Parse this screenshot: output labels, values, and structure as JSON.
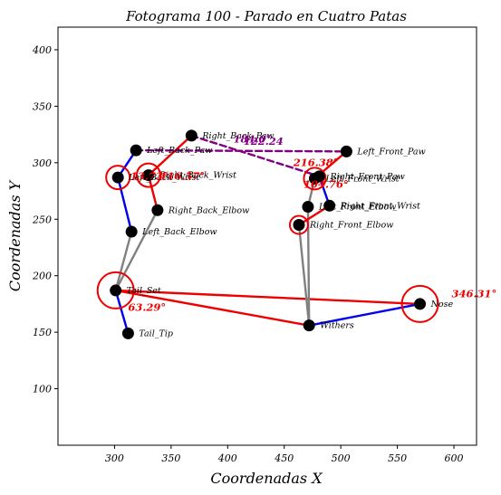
{
  "chart_data": {
    "type": "scatter",
    "title": "Fotograma 100 - Parado en Cuatro Patas",
    "xlabel": "Coordenadas X",
    "ylabel": "Coordenadas Y",
    "xlim": [
      250,
      620
    ],
    "ylim": [
      420,
      50
    ],
    "y_inverted": true,
    "xticks": [
      300,
      350,
      400,
      450,
      500,
      550,
      600
    ],
    "yticks": [
      100,
      150,
      200,
      250,
      300,
      350,
      400
    ],
    "grid": false,
    "keypoints": [
      {
        "name": "Tail_Tip",
        "x": 312,
        "y": 149
      },
      {
        "name": "Tail_Set",
        "x": 301,
        "y": 187
      },
      {
        "name": "Withers",
        "x": 472,
        "y": 156
      },
      {
        "name": "Nose",
        "x": 570,
        "y": 175
      },
      {
        "name": "Left_Back_Elbow",
        "x": 315,
        "y": 239
      },
      {
        "name": "Right_Back_Elbow",
        "x": 338,
        "y": 258
      },
      {
        "name": "Left_Back_Wrist",
        "x": 303,
        "y": 287
      },
      {
        "name": "Right_Back_Wrist",
        "x": 330,
        "y": 289
      },
      {
        "name": "Left_Back_Paw",
        "x": 319,
        "y": 311
      },
      {
        "name": "Right_Back_Paw",
        "x": 368,
        "y": 324
      },
      {
        "name": "Right_Front_Elbow",
        "x": 463,
        "y": 245
      },
      {
        "name": "Left_Front_Elbow",
        "x": 471,
        "y": 261
      },
      {
        "name": "Right_Front_Wrist",
        "x": 490,
        "y": 262
      },
      {
        "name": "Left_Front_Wrist",
        "x": 477,
        "y": 286
      },
      {
        "name": "Right_Front_Paw",
        "x": 481,
        "y": 288
      },
      {
        "name": "Left_Front_Paw",
        "x": 505,
        "y": 310
      }
    ],
    "point_labels": [
      {
        "point": "Tail_Tip",
        "text": "Tail_Tip"
      },
      {
        "point": "Tail_Set",
        "text": "Tail_Set"
      },
      {
        "point": "Withers",
        "text": "Withers"
      },
      {
        "point": "Nose",
        "text": "Nose"
      },
      {
        "point": "Left_Back_Elbow",
        "text": "Left_Back_Elbow"
      },
      {
        "point": "Right_Back_Elbow",
        "text": "Right_Back_Elbow"
      },
      {
        "point": "Left_Back_Wrist",
        "text": "Left_Back_Wrist"
      },
      {
        "point": "Right_Back_Wrist",
        "text": "Right_Back_Wrist"
      },
      {
        "point": "Left_Back_Paw",
        "text": "Left_Back_Paw"
      },
      {
        "point": "Right_Back_Paw",
        "text": "Right_Back_Paw"
      },
      {
        "point": "Right_Front_Elbow",
        "text": "Right_Front_Elbow"
      },
      {
        "point": "Left_Front_Elbow",
        "text": "Left_Front_Elbow"
      },
      {
        "point": "Right_Front_Wrist",
        "text": "Right_Front_Wrist"
      },
      {
        "point": "Left_Front_Wrist",
        "text": "Left_Front_Wrist"
      },
      {
        "point": "Right_Front_Paw",
        "text": "Right_Front_Paw"
      },
      {
        "point": "Left_Front_Paw",
        "text": "Left_Front_Paw"
      }
    ],
    "segments": [
      {
        "from": "Tail_Tip",
        "to": "Tail_Set",
        "color": "#0000ee",
        "style": "solid"
      },
      {
        "from": "Tail_Set",
        "to": "Withers",
        "color": "#ee0000",
        "style": "solid"
      },
      {
        "from": "Tail_Set",
        "to": "Nose",
        "color": "#ee0000",
        "style": "solid"
      },
      {
        "from": "Withers",
        "to": "Nose",
        "color": "#0000ee",
        "style": "solid"
      },
      {
        "from": "Tail_Set",
        "to": "Left_Back_Elbow",
        "color": "#808080",
        "style": "solid"
      },
      {
        "from": "Tail_Set",
        "to": "Right_Back_Elbow",
        "color": "#808080",
        "style": "solid"
      },
      {
        "from": "Left_Back_Elbow",
        "to": "Left_Back_Wrist",
        "color": "#0000ee",
        "style": "solid"
      },
      {
        "from": "Right_Back_Elbow",
        "to": "Right_Back_Wrist",
        "color": "#ee0000",
        "style": "solid"
      },
      {
        "from": "Left_Back_Wrist",
        "to": "Left_Back_Paw",
        "color": "#0000ee",
        "style": "solid"
      },
      {
        "from": "Right_Back_Wrist",
        "to": "Right_Back_Paw",
        "color": "#ee0000",
        "style": "solid"
      },
      {
        "from": "Withers",
        "to": "Right_Front_Elbow",
        "color": "#808080",
        "style": "solid"
      },
      {
        "from": "Withers",
        "to": "Left_Front_Elbow",
        "color": "#808080",
        "style": "solid"
      },
      {
        "from": "Right_Front_Elbow",
        "to": "Right_Front_Wrist",
        "color": "#ee0000",
        "style": "solid"
      },
      {
        "from": "Left_Front_Elbow",
        "to": "Left_Front_Wrist",
        "color": "#808080",
        "style": "solid"
      },
      {
        "from": "Right_Front_Wrist",
        "to": "Right_Front_Paw",
        "color": "#0000ee",
        "style": "solid"
      },
      {
        "from": "Left_Front_Wrist",
        "to": "Left_Front_Paw",
        "color": "#ee0000",
        "style": "solid"
      },
      {
        "from": "Left_Back_Paw",
        "to": "Left_Front_Paw",
        "color": "#800080",
        "style": "dashed"
      },
      {
        "from": "Right_Back_Paw",
        "to": "Right_Front_Paw",
        "color": "#800080",
        "style": "dashed"
      }
    ],
    "angle_arcs": [
      {
        "center": "Tail_Set",
        "radius": 20,
        "color": "#ee0000"
      },
      {
        "center": "Nose",
        "radius": 20,
        "color": "#ee0000"
      },
      {
        "center": "Left_Back_Wrist",
        "radius": 13,
        "color": "#ee0000"
      },
      {
        "center": "Right_Back_Wrist",
        "radius": 13,
        "color": "#ee0000"
      },
      {
        "center": "Left_Front_Wrist",
        "radius": 12,
        "color": "#ee0000"
      },
      {
        "center": "Right_Front_Elbow",
        "radius": 10,
        "color": "#ee0000"
      }
    ],
    "annotations": [
      {
        "text": "63.29°",
        "x": 312,
        "y": 169,
        "color": "#ee0000"
      },
      {
        "text": "346.31°",
        "x": 598,
        "y": 181,
        "color": "#ee0000"
      },
      {
        "text": "13.73°",
        "x": 314,
        "y": 285,
        "color": "#ee0000"
      },
      {
        "text": "116.57°",
        "x": 340,
        "y": 285,
        "color": "#ee0000"
      },
      {
        "text": "104.76°",
        "x": 467,
        "y": 278,
        "color": "#ee0000"
      },
      {
        "text": "216.38°",
        "x": 458,
        "y": 297,
        "color": "#ee0000"
      },
      {
        "text": "184.0°",
        "x": 405,
        "y": 318,
        "color": "#800080"
      },
      {
        "text": "122.24",
        "x": 414,
        "y": 316,
        "color": "#800080"
      }
    ]
  }
}
